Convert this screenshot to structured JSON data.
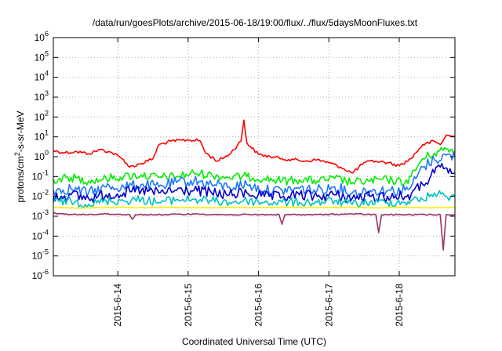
{
  "chart_data": {
    "type": "line",
    "title": "/data/run/goesPlots/archive/2015-06-18/19:00/flux/../flux/5daysMoonFluxes.txt",
    "xlabel": "Coordinated Universal Time (UTC)",
    "ylabel": "protons/cm2-s-sr-MeV",
    "ylabel_parts": {
      "before": "protons/cm",
      "sup": "2",
      "after": "-s-sr-MeV"
    },
    "yscale": "log",
    "ylim_exp": [
      -6,
      6
    ],
    "y_ticks": [
      {
        "base": "10",
        "exp": "-6"
      },
      {
        "base": "10",
        "exp": "-5"
      },
      {
        "base": "10",
        "exp": "-4"
      },
      {
        "base": "10",
        "exp": "-3"
      },
      {
        "base": "10",
        "exp": "-2"
      },
      {
        "base": "10",
        "exp": "-1"
      },
      {
        "base": "10",
        "exp": "0"
      },
      {
        "base": "10",
        "exp": "1"
      },
      {
        "base": "10",
        "exp": "2"
      },
      {
        "base": "10",
        "exp": "3"
      },
      {
        "base": "10",
        "exp": "4"
      },
      {
        "base": "10",
        "exp": "5"
      },
      {
        "base": "10",
        "exp": "6"
      }
    ],
    "x_start": "2015-06-13 02:00",
    "x_end": "2015-06-18 19:00",
    "x_ticks": [
      "2015-6-14",
      "2015-6-15",
      "2015-6-16",
      "2015-6-17",
      "2015-6-18"
    ],
    "grid": true,
    "series": [
      {
        "color": "#ff0000",
        "points": [
          [
            "2015-06-13 02:00",
            2.0
          ],
          [
            "2015-06-13 06:00",
            1.6
          ],
          [
            "2015-06-13 10:00",
            1.8
          ],
          [
            "2015-06-13 14:00",
            1.4
          ],
          [
            "2015-06-13 18:00",
            2.3
          ],
          [
            "2015-06-13 22:00",
            1.6
          ],
          [
            "2015-06-14 02:00",
            0.7
          ],
          [
            "2015-06-14 04:00",
            0.3
          ],
          [
            "2015-06-14 08:00",
            0.45
          ],
          [
            "2015-06-14 12:00",
            0.8
          ],
          [
            "2015-06-14 14:00",
            4.0
          ],
          [
            "2015-06-14 18:00",
            6.0
          ],
          [
            "2015-06-15 00:00",
            7.0
          ],
          [
            "2015-06-15 04:00",
            6.5
          ],
          [
            "2015-06-15 06:00",
            1.5
          ],
          [
            "2015-06-15 10:00",
            0.6
          ],
          [
            "2015-06-15 14:00",
            1.3
          ],
          [
            "2015-06-15 18:00",
            6.0
          ],
          [
            "2015-06-15 19:00",
            70
          ],
          [
            "2015-06-15 20:00",
            5.0
          ],
          [
            "2015-06-16 00:00",
            1.3
          ],
          [
            "2015-06-16 04:00",
            1.0
          ],
          [
            "2015-06-16 08:00",
            0.8
          ],
          [
            "2015-06-16 12:00",
            0.7
          ],
          [
            "2015-06-16 16:00",
            0.6
          ],
          [
            "2015-06-16 20:00",
            0.7
          ],
          [
            "2015-06-17 00:00",
            0.5
          ],
          [
            "2015-06-17 04:00",
            0.3
          ],
          [
            "2015-06-17 08:00",
            0.15
          ],
          [
            "2015-06-17 12:00",
            0.5
          ],
          [
            "2015-06-17 16:00",
            0.6
          ],
          [
            "2015-06-17 20:00",
            0.5
          ],
          [
            "2015-06-18 00:00",
            0.35
          ],
          [
            "2015-06-18 04:00",
            0.8
          ],
          [
            "2015-06-18 08:00",
            4.0
          ],
          [
            "2015-06-18 12:00",
            6.0
          ],
          [
            "2015-06-18 14:00",
            4.0
          ],
          [
            "2015-06-18 16:00",
            12
          ],
          [
            "2015-06-18 19:00",
            10
          ]
        ]
      },
      {
        "color": "#00ee00",
        "points": [
          [
            "2015-06-13 02:00",
            0.07
          ],
          [
            "2015-06-13 08:00",
            0.09
          ],
          [
            "2015-06-13 14:00",
            0.06
          ],
          [
            "2015-06-13 20:00",
            0.08
          ],
          [
            "2015-06-14 02:00",
            0.1
          ],
          [
            "2015-06-14 08:00",
            0.12
          ],
          [
            "2015-06-14 14:00",
            0.09
          ],
          [
            "2015-06-14 20:00",
            0.1
          ],
          [
            "2015-06-15 02:00",
            0.15
          ],
          [
            "2015-06-15 08:00",
            0.12
          ],
          [
            "2015-06-15 14:00",
            0.09
          ],
          [
            "2015-06-15 20:00",
            0.1
          ],
          [
            "2015-06-16 02:00",
            0.08
          ],
          [
            "2015-06-16 08:00",
            0.06
          ],
          [
            "2015-06-16 14:00",
            0.07
          ],
          [
            "2015-06-16 20:00",
            0.06
          ],
          [
            "2015-06-17 02:00",
            0.08
          ],
          [
            "2015-06-17 08:00",
            0.05
          ],
          [
            "2015-06-17 14:00",
            0.06
          ],
          [
            "2015-06-17 20:00",
            0.07
          ],
          [
            "2015-06-18 02:00",
            0.05
          ],
          [
            "2015-06-18 04:00",
            0.1
          ],
          [
            "2015-06-18 08:00",
            0.8
          ],
          [
            "2015-06-18 12:00",
            1.5
          ],
          [
            "2015-06-18 16:00",
            2.5
          ],
          [
            "2015-06-18 19:00",
            2.0
          ]
        ]
      },
      {
        "color": "#1e78ff",
        "points": [
          [
            "2015-06-13 02:00",
            0.02
          ],
          [
            "2015-06-13 08:00",
            0.025
          ],
          [
            "2015-06-13 14:00",
            0.015
          ],
          [
            "2015-06-13 20:00",
            0.03
          ],
          [
            "2015-06-14 02:00",
            0.03
          ],
          [
            "2015-06-14 08:00",
            0.04
          ],
          [
            "2015-06-14 14:00",
            0.03
          ],
          [
            "2015-06-14 20:00",
            0.05
          ],
          [
            "2015-06-15 02:00",
            0.06
          ],
          [
            "2015-06-15 08:00",
            0.04
          ],
          [
            "2015-06-15 14:00",
            0.03
          ],
          [
            "2015-06-15 20:00",
            0.04
          ],
          [
            "2015-06-16 02:00",
            0.02
          ],
          [
            "2015-06-16 08:00",
            0.02
          ],
          [
            "2015-06-16 14:00",
            0.025
          ],
          [
            "2015-06-16 20:00",
            0.02
          ],
          [
            "2015-06-17 02:00",
            0.03
          ],
          [
            "2015-06-17 08:00",
            0.015
          ],
          [
            "2015-06-17 14:00",
            0.02
          ],
          [
            "2015-06-17 20:00",
            0.02
          ],
          [
            "2015-06-18 02:00",
            0.02
          ],
          [
            "2015-06-18 04:00",
            0.03
          ],
          [
            "2015-06-18 08:00",
            0.3
          ],
          [
            "2015-06-18 12:00",
            0.7
          ],
          [
            "2015-06-18 16:00",
            1.2
          ],
          [
            "2015-06-18 19:00",
            1.0
          ]
        ]
      },
      {
        "color": "#0000cc",
        "points": [
          [
            "2015-06-13 02:00",
            0.01
          ],
          [
            "2015-06-13 08:00",
            0.012
          ],
          [
            "2015-06-13 14:00",
            0.008
          ],
          [
            "2015-06-13 20:00",
            0.012
          ],
          [
            "2015-06-14 02:00",
            0.015
          ],
          [
            "2015-06-14 08:00",
            0.02
          ],
          [
            "2015-06-14 14:00",
            0.015
          ],
          [
            "2015-06-14 20:00",
            0.02
          ],
          [
            "2015-06-15 02:00",
            0.02
          ],
          [
            "2015-06-15 08:00",
            0.015
          ],
          [
            "2015-06-15 14:00",
            0.012
          ],
          [
            "2015-06-15 20:00",
            0.015
          ],
          [
            "2015-06-16 02:00",
            0.01
          ],
          [
            "2015-06-16 08:00",
            0.009
          ],
          [
            "2015-06-16 14:00",
            0.012
          ],
          [
            "2015-06-16 20:00",
            0.01
          ],
          [
            "2015-06-17 02:00",
            0.012
          ],
          [
            "2015-06-17 08:00",
            0.008
          ],
          [
            "2015-06-17 14:00",
            0.01
          ],
          [
            "2015-06-17 20:00",
            0.01
          ],
          [
            "2015-06-18 02:00",
            0.01
          ],
          [
            "2015-06-18 04:00",
            0.012
          ],
          [
            "2015-06-18 08:00",
            0.04
          ],
          [
            "2015-06-18 12:00",
            0.15
          ],
          [
            "2015-06-18 14:00",
            0.3
          ],
          [
            "2015-06-18 19:00",
            0.15
          ]
        ]
      },
      {
        "color": "#00c0c0",
        "points": [
          [
            "2015-06-13 02:00",
            0.005
          ],
          [
            "2015-06-13 08:00",
            0.006
          ],
          [
            "2015-06-13 14:00",
            0.004
          ],
          [
            "2015-06-13 20:00",
            0.006
          ],
          [
            "2015-06-14 02:00",
            0.006
          ],
          [
            "2015-06-14 08:00",
            0.007
          ],
          [
            "2015-06-14 14:00",
            0.005
          ],
          [
            "2015-06-14 20:00",
            0.007
          ],
          [
            "2015-06-15 02:00",
            0.007
          ],
          [
            "2015-06-15 08:00",
            0.006
          ],
          [
            "2015-06-15 14:00",
            0.005
          ],
          [
            "2015-06-15 20:00",
            0.006
          ],
          [
            "2015-06-16 02:00",
            0.005
          ],
          [
            "2015-06-16 08:00",
            0.005
          ],
          [
            "2015-06-16 14:00",
            0.005
          ],
          [
            "2015-06-16 20:00",
            0.005
          ],
          [
            "2015-06-17 02:00",
            0.006
          ],
          [
            "2015-06-17 08:00",
            0.004
          ],
          [
            "2015-06-17 14:00",
            0.005
          ],
          [
            "2015-06-17 20:00",
            0.005
          ],
          [
            "2015-06-18 02:00",
            0.005
          ],
          [
            "2015-06-18 04:00",
            0.006
          ],
          [
            "2015-06-18 08:00",
            0.007
          ],
          [
            "2015-06-18 12:00",
            0.015
          ],
          [
            "2015-06-18 16:00",
            0.01
          ],
          [
            "2015-06-18 19:00",
            0.01
          ]
        ]
      },
      {
        "color": "#ffee00",
        "points": [
          [
            "2015-06-13 02:00",
            0.0028
          ],
          [
            "2015-06-13 12:00",
            0.0026
          ],
          [
            "2015-06-13 22:00",
            0.0028
          ],
          [
            "2015-06-14 08:00",
            0.0027
          ],
          [
            "2015-06-14 18:00",
            0.0028
          ],
          [
            "2015-06-15 04:00",
            0.0027
          ],
          [
            "2015-06-15 14:00",
            0.0028
          ],
          [
            "2015-06-16 00:00",
            0.0027
          ],
          [
            "2015-06-16 10:00",
            0.0028
          ],
          [
            "2015-06-16 20:00",
            0.0027
          ],
          [
            "2015-06-17 06:00",
            0.0028
          ],
          [
            "2015-06-17 16:00",
            0.0027
          ],
          [
            "2015-06-18 02:00",
            0.0028
          ],
          [
            "2015-06-18 12:00",
            0.0027
          ],
          [
            "2015-06-18 19:00",
            0.0028
          ]
        ]
      },
      {
        "color": "#993366",
        "points": [
          [
            "2015-06-13 02:00",
            0.0014
          ],
          [
            "2015-06-13 10:00",
            0.0012
          ],
          [
            "2015-06-13 20:00",
            0.0013
          ],
          [
            "2015-06-14 04:00",
            0.0012
          ],
          [
            "2015-06-14 05:00",
            0.0007
          ],
          [
            "2015-06-14 06:00",
            0.0012
          ],
          [
            "2015-06-14 16:00",
            0.0012
          ],
          [
            "2015-06-15 02:00",
            0.0013
          ],
          [
            "2015-06-15 12:00",
            0.0012
          ],
          [
            "2015-06-15 22:00",
            0.0012
          ],
          [
            "2015-06-16 07:00",
            0.0012
          ],
          [
            "2015-06-16 08:00",
            0.0004
          ],
          [
            "2015-06-16 09:00",
            0.0012
          ],
          [
            "2015-06-16 20:00",
            0.0012
          ],
          [
            "2015-06-17 08:00",
            0.0013
          ],
          [
            "2015-06-17 16:00",
            0.0012
          ],
          [
            "2015-06-17 17:00",
            0.00015
          ],
          [
            "2015-06-17 18:00",
            0.0012
          ],
          [
            "2015-06-18 06:00",
            0.0012
          ],
          [
            "2015-06-18 14:00",
            0.0012
          ],
          [
            "2015-06-18 15:00",
            2e-05
          ],
          [
            "2015-06-18 16:00",
            0.0012
          ],
          [
            "2015-06-18 19:00",
            0.0012
          ]
        ]
      }
    ]
  }
}
